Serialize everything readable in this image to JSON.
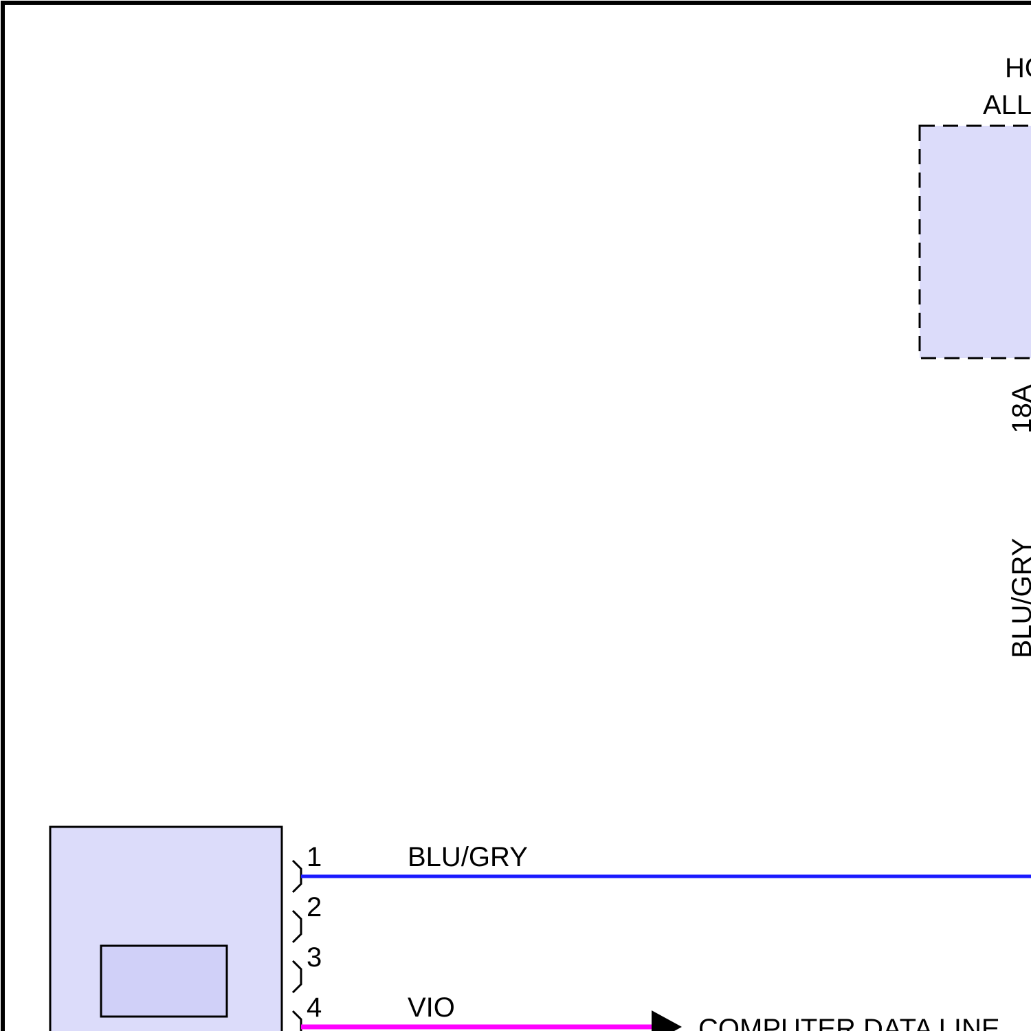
{
  "top_component": {
    "label_line1": "HOT",
    "label_line2": "ALL"
  },
  "vertical_wire": {
    "fuse": "18A",
    "color": "BLU/GRY"
  },
  "connector": {
    "pins": [
      "1",
      "2",
      "3",
      "4"
    ]
  },
  "wires": [
    {
      "pin": "1",
      "color": "BLU/GRY"
    },
    {
      "pin": "4",
      "color": "VIO",
      "destination": "COMPUTER DATA LINE"
    }
  ]
}
